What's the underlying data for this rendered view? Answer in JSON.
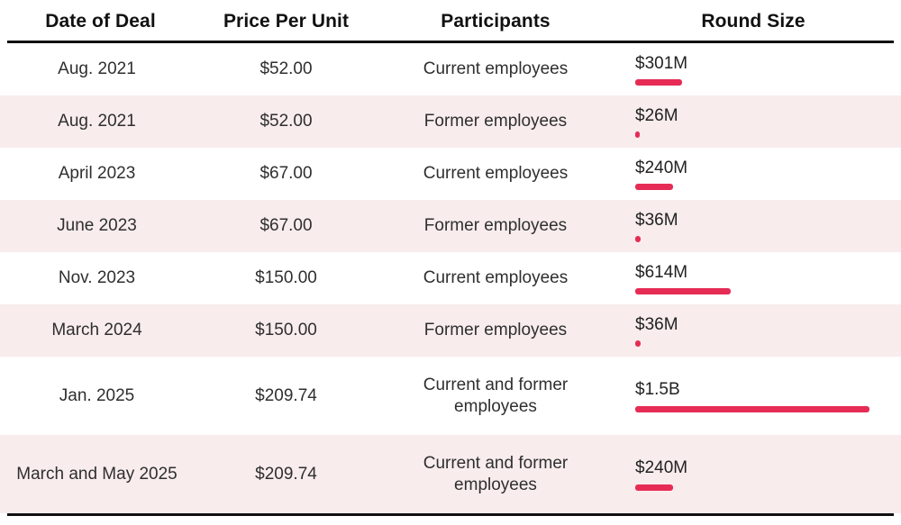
{
  "table": {
    "headers": {
      "date": "Date of Deal",
      "price": "Price Per Unit",
      "participants": "Participants",
      "round_size": "Round Size"
    },
    "rows": [
      {
        "date": "Aug. 2021",
        "price": "$52.00",
        "participants": "Current employees",
        "round_size": "$301M"
      },
      {
        "date": "Aug. 2021",
        "price": "$52.00",
        "participants": "Former employees",
        "round_size": "$26M"
      },
      {
        "date": "April 2023",
        "price": "$67.00",
        "participants": "Current employees",
        "round_size": "$240M"
      },
      {
        "date": "June 2023",
        "price": "$67.00",
        "participants": "Former employees",
        "round_size": "$36M"
      },
      {
        "date": "Nov. 2023",
        "price": "$150.00",
        "participants": "Current employees",
        "round_size": "$614M"
      },
      {
        "date": "March 2024",
        "price": "$150.00",
        "participants": "Former employees",
        "round_size": "$36M"
      },
      {
        "date": "Jan. 2025",
        "price": "$209.74",
        "participants": "Current and former employees",
        "round_size": "$1.5B"
      },
      {
        "date": "March and May 2025",
        "price": "$209.74",
        "participants": "Current and former employees",
        "round_size": "$240M"
      }
    ]
  },
  "chart_data": {
    "type": "table",
    "title": "",
    "columns": [
      "Date of Deal",
      "Price Per Unit",
      "Participants",
      "Round Size"
    ],
    "rows": [
      [
        "Aug. 2021",
        52.0,
        "Current employees",
        "$301M"
      ],
      [
        "Aug. 2021",
        52.0,
        "Former employees",
        "$26M"
      ],
      [
        "April 2023",
        67.0,
        "Current employees",
        "$240M"
      ],
      [
        "June 2023",
        67.0,
        "Former employees",
        "$36M"
      ],
      [
        "Nov. 2023",
        150.0,
        "Current employees",
        "$614M"
      ],
      [
        "March 2024",
        150.0,
        "Former employees",
        "$36M"
      ],
      [
        "Jan. 2025",
        209.74,
        "Current and former employees",
        "$1.5B"
      ],
      [
        "March and May 2025",
        209.74,
        "Current and former employees",
        "$240M"
      ]
    ],
    "bar_series_label": "Round Size (millions USD)",
    "bar_values_musd": [
      301,
      26,
      240,
      36,
      614,
      36,
      1500,
      240
    ],
    "bar_max_musd": 1500,
    "legend": "none",
    "grid": "off"
  },
  "colors": {
    "bar": "#e62c55",
    "row_alt_background": "#f8ecec",
    "rule": "#111111",
    "text": "#2f2f2f"
  }
}
